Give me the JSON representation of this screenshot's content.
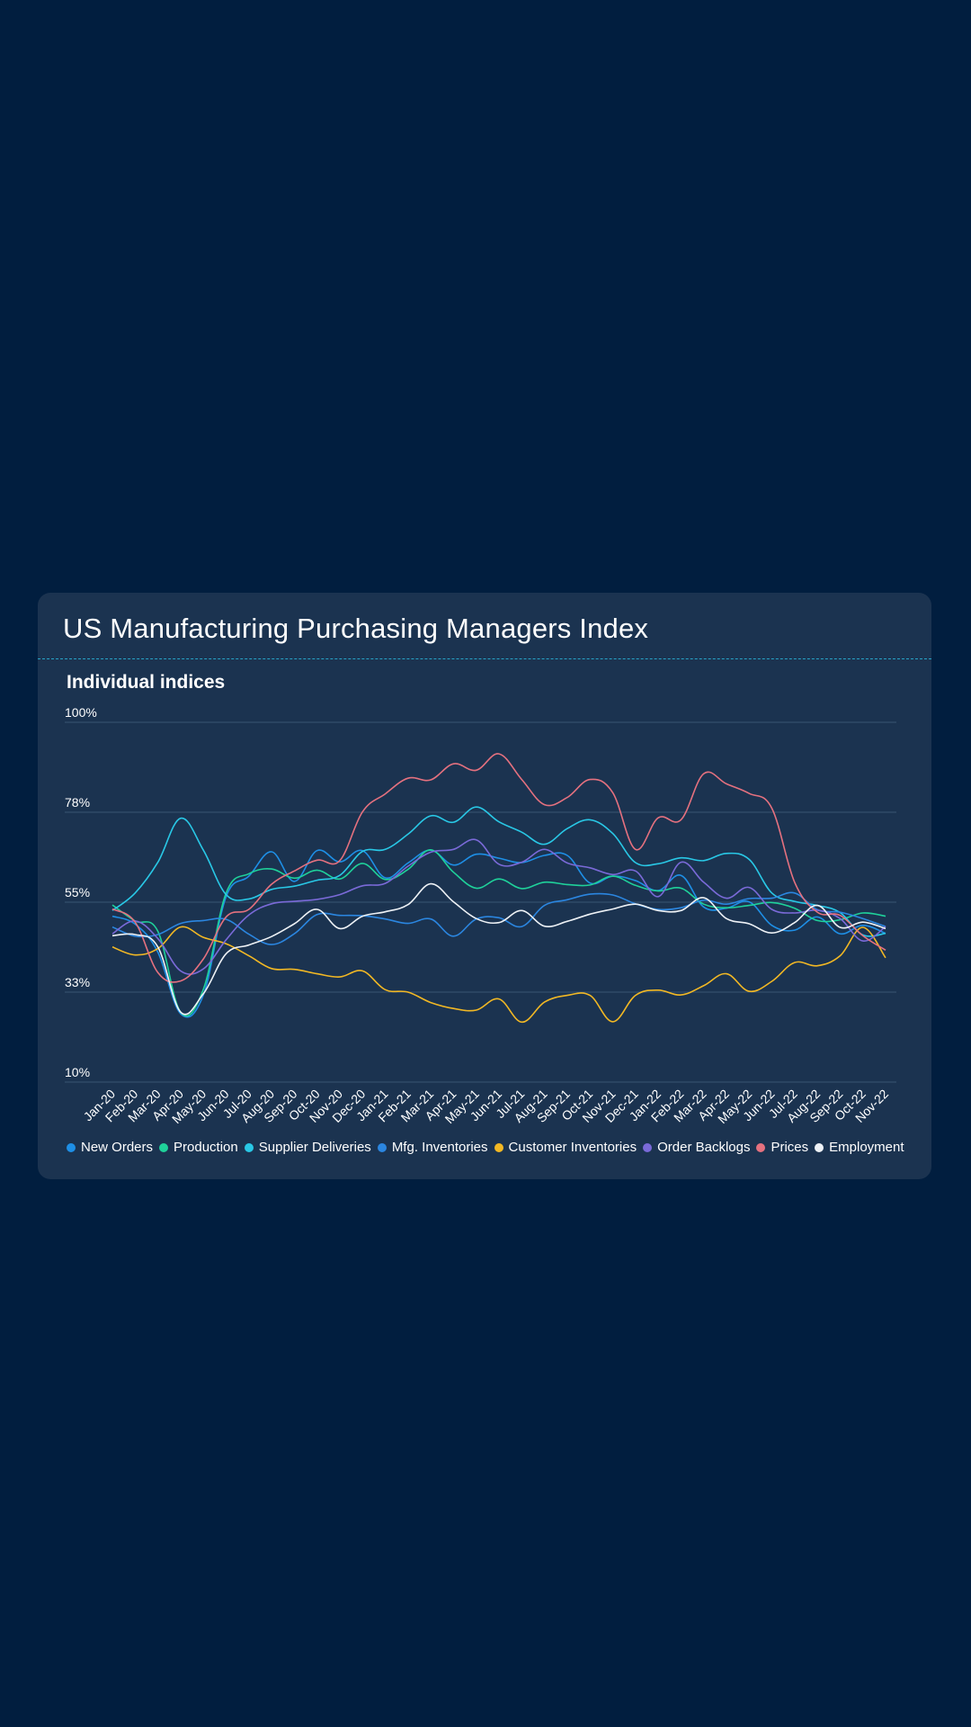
{
  "card": {
    "title": "US Manufacturing Purchasing Managers Index",
    "subtitle": "Individual indices"
  },
  "colors": {
    "background": "#011e3f",
    "card": "#1b3350",
    "divider": "#27a3c7",
    "gridline": "#3a5472"
  },
  "chart_data": {
    "type": "line",
    "title": "Individual indices",
    "xlabel": "",
    "ylabel": "",
    "ylim": [
      10,
      100
    ],
    "yticks": [
      {
        "value": 100,
        "label": "100%"
      },
      {
        "value": 77.5,
        "label": "78%"
      },
      {
        "value": 55,
        "label": "55%"
      },
      {
        "value": 32.5,
        "label": "33%"
      },
      {
        "value": 10,
        "label": "10%"
      }
    ],
    "grid": true,
    "legend_position": "bottom",
    "x": [
      "Jan-20",
      "Feb-20",
      "Mar-20",
      "Apr-20",
      "May-20",
      "Jun-20",
      "Jul-20",
      "Aug-20",
      "Sep-20",
      "Oct-20",
      "Nov-20",
      "Dec-20",
      "Jan-21",
      "Feb-21",
      "Mar-21",
      "Apr-21",
      "May-21",
      "Jun-21",
      "Jul-21",
      "Aug-21",
      "Sep-21",
      "Oct-21",
      "Nov-21",
      "Dec-21",
      "Jan-22",
      "Feb-22",
      "Mar-22",
      "Apr-22",
      "May-22",
      "Jun-22",
      "Jul-22",
      "Aug-22",
      "Sep-22",
      "Oct-22",
      "Nov-22"
    ],
    "series": [
      {
        "name": "New Orders",
        "color": "#1e8fe6",
        "values": [
          51.5,
          49.5,
          42.5,
          27.1,
          31.8,
          56.4,
          61.5,
          67.6,
          60.2,
          67.9,
          65.1,
          67.9,
          61.1,
          64.8,
          68.0,
          64.3,
          67.0,
          66.0,
          64.9,
          66.7,
          66.7,
          59.8,
          61.5,
          60.4,
          57.9,
          61.7,
          53.8,
          53.5,
          55.1,
          49.2,
          48.0,
          51.3,
          47.1,
          49.2,
          47.2
        ]
      },
      {
        "name": "Production",
        "color": "#1fd19a",
        "values": [
          54.3,
          50.3,
          47.7,
          27.5,
          33.2,
          57.3,
          62.1,
          63.3,
          61.0,
          63.0,
          60.8,
          64.7,
          60.7,
          63.2,
          68.1,
          62.5,
          58.5,
          60.8,
          58.4,
          60.0,
          59.4,
          59.3,
          61.5,
          59.2,
          57.8,
          58.5,
          54.5,
          53.6,
          54.2,
          54.9,
          53.5,
          50.4,
          50.6,
          52.3,
          51.5
        ]
      },
      {
        "name": "Supplier Deliveries",
        "color": "#29c8e6",
        "values": [
          52.9,
          57.3,
          65.0,
          76.0,
          68.0,
          56.9,
          55.8,
          58.2,
          59.0,
          60.5,
          61.7,
          67.7,
          68.2,
          72.0,
          76.6,
          75.0,
          78.8,
          75.1,
          72.5,
          69.5,
          73.4,
          75.6,
          72.2,
          64.9,
          64.6,
          66.1,
          65.4,
          67.2,
          65.7,
          57.3,
          55.2,
          54.2,
          52.4,
          46.8,
          47.2
        ]
      },
      {
        "name": "Mfg. Inventories",
        "color": "#2b86e0",
        "values": [
          48.8,
          46.5,
          46.9,
          49.7,
          50.4,
          50.7,
          47.0,
          44.4,
          47.1,
          51.9,
          51.7,
          51.6,
          50.8,
          49.7,
          50.8,
          46.5,
          50.8,
          51.1,
          48.9,
          54.2,
          55.6,
          57.0,
          56.8,
          54.6,
          53.2,
          53.6,
          55.5,
          54.5,
          55.9,
          56.0,
          57.3,
          53.1,
          52.5,
          50.9,
          48.9
        ]
      },
      {
        "name": "Customer Inventories",
        "color": "#f2b824",
        "values": [
          43.8,
          41.8,
          43.4,
          48.8,
          46.2,
          44.6,
          41.6,
          38.4,
          38.2,
          37.1,
          36.3,
          37.8,
          33.1,
          32.5,
          29.9,
          28.4,
          28.0,
          30.8,
          25.0,
          30.0,
          31.7,
          31.7,
          25.1,
          31.7,
          33.0,
          31.8,
          34.1,
          37.1,
          32.7,
          35.2,
          39.9,
          39.1,
          41.6,
          48.7,
          41.1
        ]
      },
      {
        "name": "Order Backlogs",
        "color": "#7a6ad8",
        "values": [
          47.1,
          50.3,
          45.9,
          37.8,
          38.3,
          45.6,
          51.8,
          54.6,
          55.2,
          55.7,
          56.9,
          59.1,
          59.7,
          64.0,
          67.5,
          68.2,
          70.6,
          64.5,
          65.0,
          68.2,
          64.8,
          63.6,
          61.9,
          62.8,
          56.4,
          65.0,
          60.0,
          56.0,
          58.7,
          53.2,
          52.3,
          53.0,
          50.9,
          45.3,
          48.9
        ]
      },
      {
        "name": "Prices",
        "color": "#e5717f",
        "values": [
          53.3,
          50.0,
          37.4,
          35.3,
          40.8,
          51.3,
          53.2,
          59.5,
          62.8,
          65.5,
          65.4,
          77.6,
          82.1,
          86.0,
          85.6,
          89.6,
          88.0,
          92.1,
          85.7,
          79.4,
          81.2,
          85.7,
          82.4,
          68.2,
          76.1,
          75.6,
          87.1,
          84.6,
          82.2,
          78.5,
          60.0,
          52.5,
          51.7,
          46.6,
          43.0
        ]
      },
      {
        "name": "Employment",
        "color": "#eef2f6",
        "values": [
          46.6,
          46.9,
          43.8,
          27.5,
          32.1,
          42.1,
          44.3,
          46.4,
          49.6,
          53.2,
          48.4,
          51.5,
          52.6,
          54.4,
          59.6,
          55.1,
          50.9,
          49.9,
          52.9,
          49.0,
          50.2,
          52.0,
          53.3,
          54.5,
          52.9,
          52.9,
          56.1,
          50.9,
          49.6,
          47.3,
          49.9,
          54.2,
          48.7,
          50.0,
          48.4
        ]
      }
    ]
  }
}
